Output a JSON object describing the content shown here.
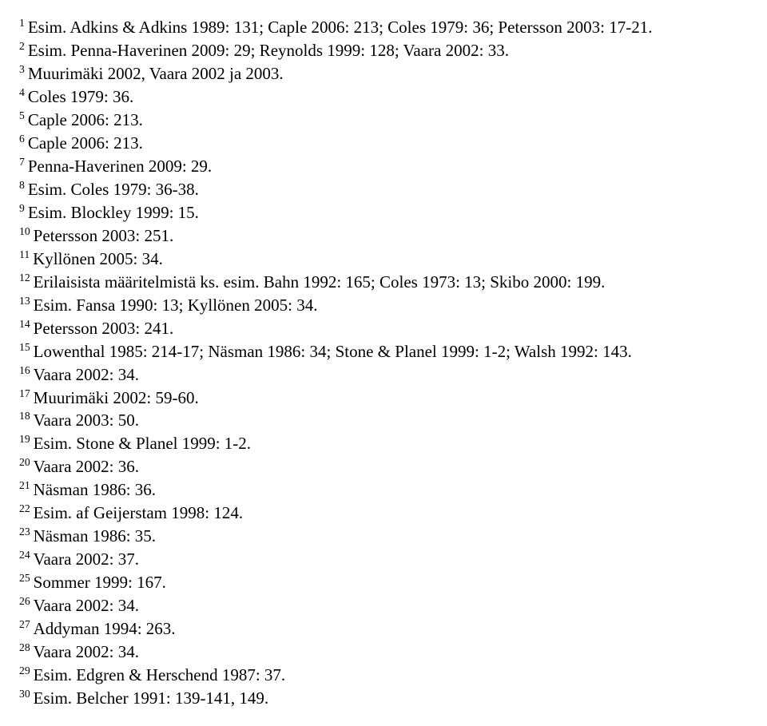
{
  "style": {
    "font_family": "Times New Roman",
    "font_size_pt": 16,
    "line_height": 1.38,
    "text_color": "#000000",
    "background_color": "#ffffff"
  },
  "footnotes": [
    {
      "n": "1",
      "t": "Esim. Adkins & Adkins 1989: 131; Caple 2006: 213; Coles 1979: 36; Petersson 2003: 17-21."
    },
    {
      "n": "2",
      "t": "Esim. Penna-Haverinen 2009: 29; Reynolds 1999: 128; Vaara 2002: 33."
    },
    {
      "n": "3",
      "t": "Muurimäki 2002, Vaara 2002 ja 2003."
    },
    {
      "n": "4",
      "t": "Coles 1979: 36."
    },
    {
      "n": "5",
      "t": "Caple 2006: 213."
    },
    {
      "n": "6",
      "t": "Caple 2006: 213."
    },
    {
      "n": "7",
      "t": "Penna-Haverinen 2009: 29."
    },
    {
      "n": "8",
      "t": "Esim. Coles 1979: 36-38."
    },
    {
      "n": "9",
      "t": "Esim. Blockley 1999: 15."
    },
    {
      "n": "10",
      "t": "Petersson 2003: 251."
    },
    {
      "n": "11",
      "t": "Kyllönen 2005: 34."
    },
    {
      "n": "12",
      "t": "Erilaisista määritelmistä ks. esim. Bahn 1992: 165; Coles 1973: 13; Skibo 2000: 199."
    },
    {
      "n": "13",
      "t": "Esim. Fansa 1990: 13; Kyllönen 2005: 34."
    },
    {
      "n": "14",
      "t": "Petersson 2003: 241."
    },
    {
      "n": "15",
      "t": "Lowenthal 1985: 214-17; Näsman 1986: 34; Stone & Planel 1999: 1-2; Walsh 1992: 143."
    },
    {
      "n": "16",
      "t": "Vaara 2002: 34."
    },
    {
      "n": "17",
      "t": "Muurimäki 2002: 59-60."
    },
    {
      "n": "18",
      "t": "Vaara 2003: 50."
    },
    {
      "n": "19",
      "t": "Esim. Stone & Planel 1999: 1-2."
    },
    {
      "n": "20",
      "t": "Vaara 2002: 36."
    },
    {
      "n": "21",
      "t": "Näsman 1986: 36."
    },
    {
      "n": "22",
      "t": "Esim. af Geijerstam 1998: 124."
    },
    {
      "n": "23",
      "t": "Näsman 1986: 35."
    },
    {
      "n": "24",
      "t": "Vaara 2002: 37."
    },
    {
      "n": "25",
      "t": "Sommer 1999: 167."
    },
    {
      "n": "26",
      "t": "Vaara 2002: 34."
    },
    {
      "n": "27",
      "t": "Addyman 1994: 263."
    },
    {
      "n": "28",
      "t": "Vaara 2002: 34."
    },
    {
      "n": "29",
      "t": "Esim. Edgren & Herschend 1987: 37."
    },
    {
      "n": "30",
      "t": "Esim. Belcher 1991: 139-141, 149."
    }
  ]
}
